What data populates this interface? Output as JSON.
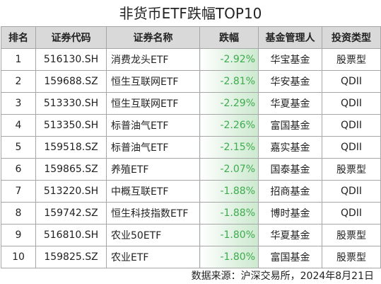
{
  "header": {
    "title": "非货币ETF跌幅TOP10"
  },
  "table": {
    "columns": [
      "排名",
      "证券代码",
      "证券名称",
      "跌幅",
      "基金管理人",
      "投资类型"
    ],
    "rows": [
      [
        "1",
        "516130.SH",
        "消费龙头ETF",
        "-2.92%",
        "华宝基金",
        "股票型"
      ],
      [
        "2",
        "159688.SZ",
        "恒生互联网ETF",
        "-2.81%",
        "华安基金",
        "QDII"
      ],
      [
        "3",
        "513330.SH",
        "恒生互联网ETF",
        "-2.29%",
        "华夏基金",
        "QDII"
      ],
      [
        "4",
        "513350.SH",
        "标普油气ETF",
        "-2.26%",
        "富国基金",
        "QDII"
      ],
      [
        "5",
        "159518.SZ",
        "标普油气ETF",
        "-2.15%",
        "嘉实基金",
        "QDII"
      ],
      [
        "6",
        "159865.SZ",
        "养殖ETF",
        "-2.07%",
        "国泰基金",
        "股票型"
      ],
      [
        "7",
        "513220.SH",
        "中概互联ETF",
        "-1.88%",
        "招商基金",
        "QDII"
      ],
      [
        "8",
        "159742.SZ",
        "恒生科技指数ETF",
        "-1.88%",
        "博时基金",
        "QDII"
      ],
      [
        "9",
        "516810.SH",
        "农业50ETF",
        "-1.80%",
        "华夏基金",
        "股票型"
      ],
      [
        "10",
        "159825.SZ",
        "农业ETF",
        "-1.80%",
        "富国基金",
        "股票型"
      ]
    ]
  },
  "footer": {
    "source": "数据来源：沪深交易所，2024年8月21日"
  }
}
